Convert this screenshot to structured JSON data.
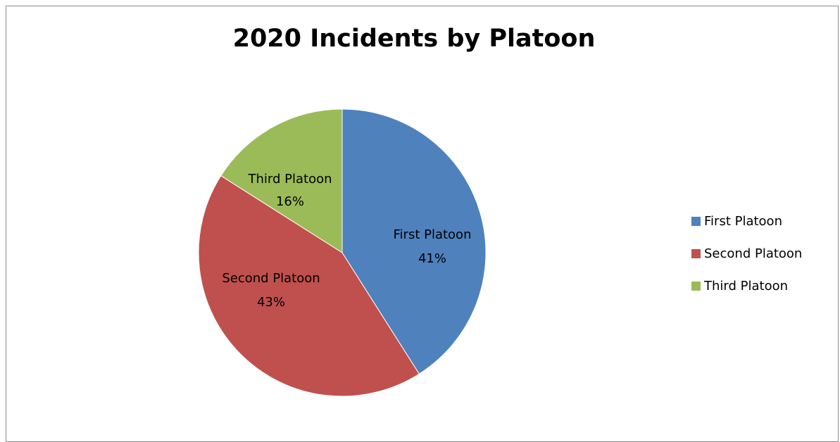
{
  "chart_data": {
    "type": "pie",
    "title": "2020 Incidents by Platoon",
    "categories": [
      "First Platoon",
      "Second Platoon",
      "Third Platoon"
    ],
    "values": [
      41,
      43,
      16
    ],
    "data_labels": [
      "41%",
      "43%",
      "16%"
    ],
    "colors": [
      "#4f81bd",
      "#c0504d",
      "#9bbb59"
    ],
    "start_angle": "12 o'clock, clockwise",
    "legend_position": "right"
  }
}
